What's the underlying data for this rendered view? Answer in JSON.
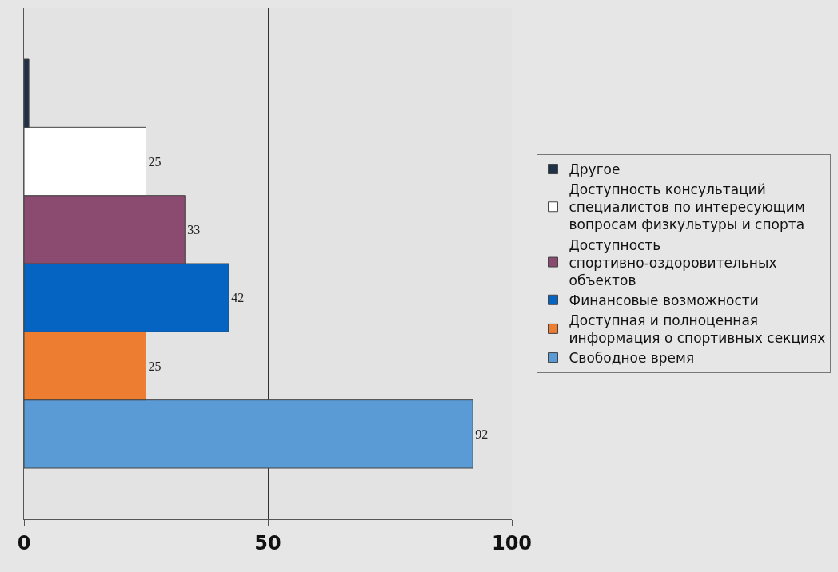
{
  "chart_data": {
    "type": "bar",
    "orientation": "horizontal",
    "categories": [
      null
    ],
    "series": [
      {
        "name": "Свободное время",
        "color": "#5b9bd5",
        "values": [
          92
        ],
        "value_labels": [
          "92"
        ]
      },
      {
        "name": "Доступная и полноценная информация о спортивных секциях",
        "color": "#ed7d31",
        "values": [
          25
        ],
        "value_labels": [
          "25"
        ]
      },
      {
        "name": "Финансовые возможности",
        "color": "#0563c1",
        "values": [
          42
        ],
        "value_labels": [
          "42"
        ]
      },
      {
        "name": "Доступность спортивно-оздоровительных объектов",
        "color": "#8b4a6f",
        "values": [
          33
        ],
        "value_labels": [
          "33"
        ]
      },
      {
        "name": "Доступность консультаций специалистов по интересующим вопросам физкультуры и спорта",
        "color": "#ffffff",
        "values": [
          25
        ],
        "value_labels": [
          "25"
        ]
      },
      {
        "name": "Другое",
        "color": "#1f3049",
        "values": [
          1
        ],
        "value_labels": [
          null
        ]
      }
    ],
    "xlim": [
      0,
      100
    ],
    "xticks": [
      0,
      50,
      100
    ],
    "grid": "x",
    "legend": "right",
    "tick_labels": "x"
  }
}
